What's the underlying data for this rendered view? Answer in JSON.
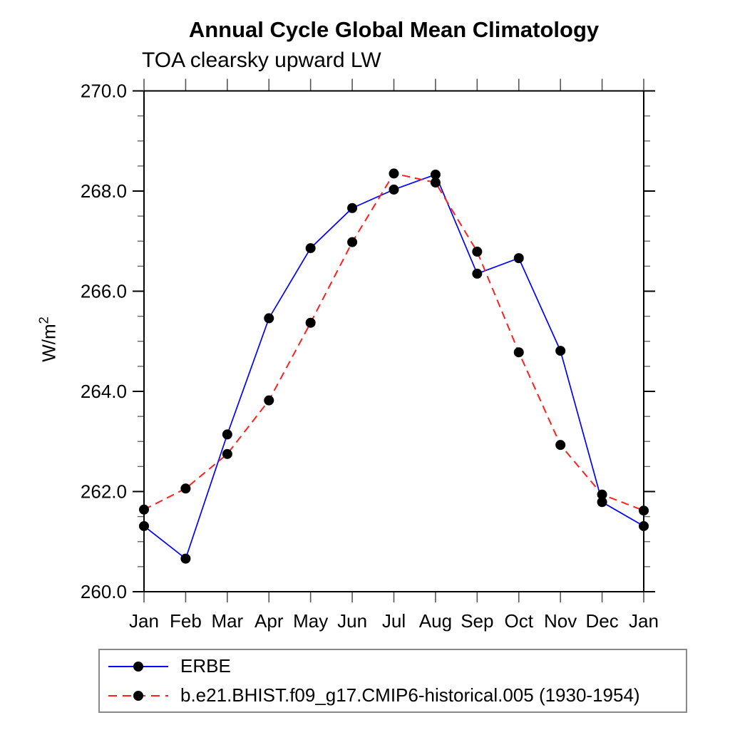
{
  "title": "Annual Cycle Global Mean Climatology",
  "subtitle": "TOA clearsky upward LW",
  "ylabel": {
    "text": "W/m",
    "superscript": "2"
  },
  "chart_data": {
    "type": "line",
    "title": "Annual Cycle Global Mean Climatology",
    "subtitle": "TOA clearsky upward LW",
    "ylabel": "W/m^2",
    "categories": [
      "Jan",
      "Feb",
      "Mar",
      "Apr",
      "May",
      "Jun",
      "Jul",
      "Aug",
      "Sep",
      "Oct",
      "Nov",
      "Dec",
      "Jan"
    ],
    "series": [
      {
        "name": "ERBE",
        "color": "#0000ff",
        "line_style": "solid",
        "marker": "filled-circle",
        "marker_color": "#000000",
        "values": [
          261.31,
          260.66,
          263.14,
          265.46,
          266.86,
          267.66,
          268.03,
          268.33,
          266.35,
          266.66,
          264.81,
          261.79,
          261.31
        ]
      },
      {
        "name": "b.e21.BHIST.f09_g17.CMIP6-historical.005 (1930-1954)",
        "color": "#ff2020",
        "line_style": "dashed",
        "marker": "filled-circle",
        "marker_color": "#000000",
        "values": [
          261.64,
          262.06,
          262.75,
          263.82,
          265.37,
          266.98,
          268.35,
          268.17,
          266.79,
          264.78,
          262.93,
          261.94,
          261.62
        ]
      }
    ],
    "ylim": [
      260.0,
      270.0
    ],
    "ytick_major_values": [
      260.0,
      262.0,
      264.0,
      266.0,
      268.0,
      270.0
    ],
    "ytick_minor_step": 0.5,
    "ytick_label_decimals": 1,
    "grid": false,
    "tick_direction": "out",
    "legend_position": "bottom-left"
  }
}
